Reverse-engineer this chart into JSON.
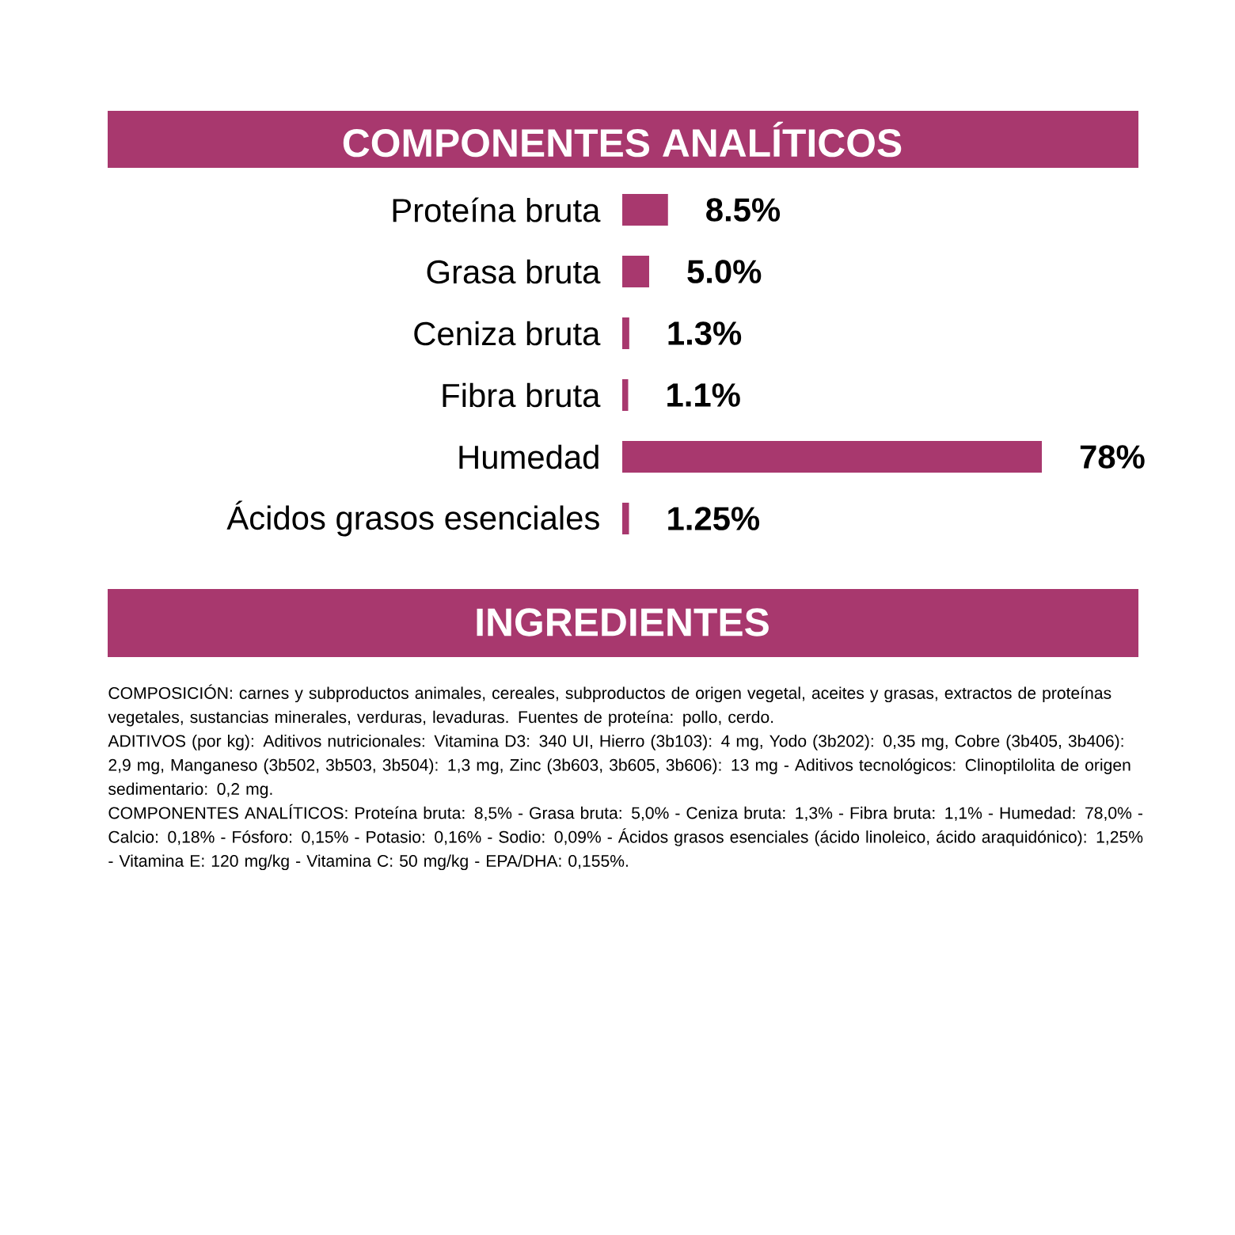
{
  "chart_data": {
    "type": "bar",
    "orientation": "horizontal",
    "title": "COMPONENTES ANALÍTICOS",
    "color": "#a8386e",
    "categories": [
      "Proteína bruta",
      "Grasa bruta",
      "Ceniza bruta",
      "Fibra bruta",
      "Humedad",
      "Ácidos grasos esenciales"
    ],
    "values": [
      8.5,
      5.0,
      1.3,
      1.1,
      78,
      1.25
    ],
    "value_labels": [
      "8.5%",
      "5.0%",
      "1.3%",
      "1.1%",
      "78%",
      "1.25%"
    ],
    "annotations": [
      "INGREDIENTES",
      "COMPOSICIÓN: carnes y subproductos animales, cereales, subproductos de origen vegetal, aceites y grasas, extractos de proteínas vegetales, sustancias minerales, verduras, levaduras. Fuentes de proteína: pollo, cerdo.",
      "ADITIVOS (por kg): Aditivos nutricionales: Vitamina D3: 340 UI, Hierro (3b103): 4 mg, Yodo (3b202): 0,35 mg, Cobre (3b405, 3b406): 2,9 mg, Manganeso (3b502, 3b503, 3b504): 1,3 mg, Zinc (3b603, 3b605, 3b606): 13 mg - Aditivos tecnológicos: Clinoptilolita de origen sedimentario: 0,2 mg.",
      "COMPONENTES ANALÍTICOS: Proteína bruta: 8,5% - Grasa bruta: 5,0% - Ceniza bruta: 1,3% - Fibra bruta: 1,1% - Humedad: 78,0% - Calcio: 0,18% - Fósforo: 0,15% - Potasio: 0,16% - Sodio: 0,09% - Ácidos grasos esenciales (ácido linoleico, ácido araquidónico): 1,25% - Vitamina E: 120 mg/kg - Vitamina C: 50 mg/kg - EPA/DHA: 0,155%."
    ]
  }
}
